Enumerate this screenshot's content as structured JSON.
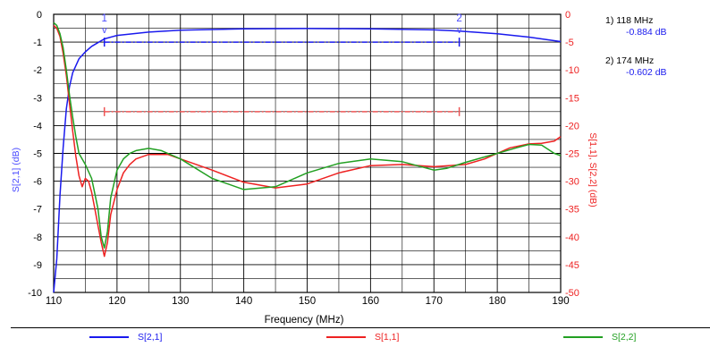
{
  "chart_data": {
    "type": "line",
    "title": "",
    "xlabel": "Frequency (MHz)",
    "ylabel_left": "S[2,1] (dB)",
    "ylabel_right": "S[1,1], S[2,2] (dB)",
    "xlim": [
      110,
      190
    ],
    "ylim_left": [
      -10,
      0
    ],
    "ylim_right": [
      -50,
      0
    ],
    "x_ticks": [
      "110",
      "120",
      "130",
      "140",
      "150",
      "160",
      "170",
      "180",
      "190"
    ],
    "y_left_ticks": [
      "0",
      "-1",
      "-2",
      "-3",
      "-4",
      "-5",
      "-6",
      "-7",
      "-8",
      "-9",
      "-10"
    ],
    "y_right_ticks": [
      "0",
      "-5",
      "-10",
      "-15",
      "-20",
      "-25",
      "-30",
      "-35",
      "-40",
      "-45",
      "-50"
    ],
    "grid": true,
    "legend_position": "bottom",
    "series": [
      {
        "name": "S[2,1]",
        "axis": "left",
        "color": "#1a1aee",
        "points": [
          [
            110,
            -10
          ],
          [
            110.5,
            -8.8
          ],
          [
            111,
            -6.5
          ],
          [
            111.5,
            -4.8
          ],
          [
            112,
            -3.4
          ],
          [
            112.5,
            -2.6
          ],
          [
            113,
            -2.1
          ],
          [
            114,
            -1.6
          ],
          [
            115,
            -1.35
          ],
          [
            116,
            -1.15
          ],
          [
            118,
            -0.884
          ],
          [
            120,
            -0.76
          ],
          [
            125,
            -0.64
          ],
          [
            130,
            -0.57
          ],
          [
            140,
            -0.52
          ],
          [
            150,
            -0.51
          ],
          [
            160,
            -0.52
          ],
          [
            170,
            -0.56
          ],
          [
            174,
            -0.602
          ],
          [
            180,
            -0.7
          ],
          [
            185,
            -0.82
          ],
          [
            190,
            -0.98
          ]
        ]
      },
      {
        "name": "S[1,1]",
        "axis": "right",
        "color": "#ee2222",
        "points": [
          [
            110,
            -2
          ],
          [
            110.5,
            -2.5
          ],
          [
            111,
            -4
          ],
          [
            111.5,
            -7
          ],
          [
            112,
            -11
          ],
          [
            112.5,
            -16
          ],
          [
            113,
            -21
          ],
          [
            113.5,
            -25.5
          ],
          [
            114,
            -29
          ],
          [
            114.5,
            -31
          ],
          [
            115,
            -29.5
          ],
          [
            115.5,
            -30
          ],
          [
            116,
            -32
          ],
          [
            116.5,
            -35
          ],
          [
            117,
            -38
          ],
          [
            117.5,
            -41
          ],
          [
            118,
            -43.5
          ],
          [
            118.5,
            -41
          ],
          [
            119,
            -36
          ],
          [
            120,
            -31.5
          ],
          [
            121,
            -28.5
          ],
          [
            122,
            -27
          ],
          [
            123,
            -26
          ],
          [
            125,
            -25.2
          ],
          [
            128,
            -25.2
          ],
          [
            130,
            -26
          ],
          [
            135,
            -28
          ],
          [
            140,
            -30.2
          ],
          [
            145,
            -31.2
          ],
          [
            150,
            -30.5
          ],
          [
            155,
            -28.5
          ],
          [
            160,
            -27.2
          ],
          [
            165,
            -27
          ],
          [
            170,
            -27.4
          ],
          [
            175,
            -27
          ],
          [
            178,
            -26
          ],
          [
            180,
            -25
          ],
          [
            182,
            -24
          ],
          [
            185,
            -23.3
          ],
          [
            187,
            -23.2
          ],
          [
            189,
            -22.8
          ],
          [
            190,
            -22
          ]
        ]
      },
      {
        "name": "S[2,2]",
        "axis": "right",
        "color": "#22a022",
        "points": [
          [
            110,
            -1.5
          ],
          [
            110.5,
            -2
          ],
          [
            111,
            -3.5
          ],
          [
            111.5,
            -6
          ],
          [
            112,
            -10
          ],
          [
            112.5,
            -14.5
          ],
          [
            113,
            -18.5
          ],
          [
            113.5,
            -22
          ],
          [
            114,
            -25
          ],
          [
            115,
            -27
          ],
          [
            116,
            -29.5
          ],
          [
            117,
            -35
          ],
          [
            117.5,
            -40
          ],
          [
            118,
            -42
          ],
          [
            118.5,
            -39
          ],
          [
            119,
            -33
          ],
          [
            120,
            -28
          ],
          [
            121,
            -26
          ],
          [
            122,
            -25
          ],
          [
            123,
            -24.5
          ],
          [
            125,
            -24.1
          ],
          [
            127,
            -24.5
          ],
          [
            130,
            -26
          ],
          [
            135,
            -29.5
          ],
          [
            140,
            -31.5
          ],
          [
            145,
            -31
          ],
          [
            150,
            -28.5
          ],
          [
            155,
            -26.8
          ],
          [
            160,
            -26
          ],
          [
            165,
            -26.5
          ],
          [
            170,
            -28
          ],
          [
            172,
            -27.7
          ],
          [
            175,
            -26.6
          ],
          [
            180,
            -25
          ],
          [
            183,
            -24
          ],
          [
            185,
            -23.4
          ],
          [
            187,
            -23.5
          ],
          [
            189,
            -25
          ],
          [
            190,
            -25.4
          ]
        ]
      }
    ],
    "markers": [
      {
        "label": "1",
        "freq": 118,
        "value": -0.884,
        "text_freq": "1) 118 MHz",
        "text_value": "-0.884 dB"
      },
      {
        "label": "2",
        "freq": 174,
        "value": -0.602,
        "text_freq": "2) 174 MHz",
        "text_value": "-0.602 dB"
      }
    ],
    "marker_glyph": "v",
    "marker_lines": [
      {
        "axis": "left",
        "value": -1.0,
        "x_from": 118,
        "x_to": 174,
        "color": "#1a1aee"
      },
      {
        "axis": "right",
        "value": -17.5,
        "x_from": 118,
        "x_to": 174,
        "color": "#ee5555"
      }
    ],
    "colors": {
      "left_axis": "#4a4aff",
      "right_axis": "#ee2222",
      "grid": "#000000"
    }
  }
}
